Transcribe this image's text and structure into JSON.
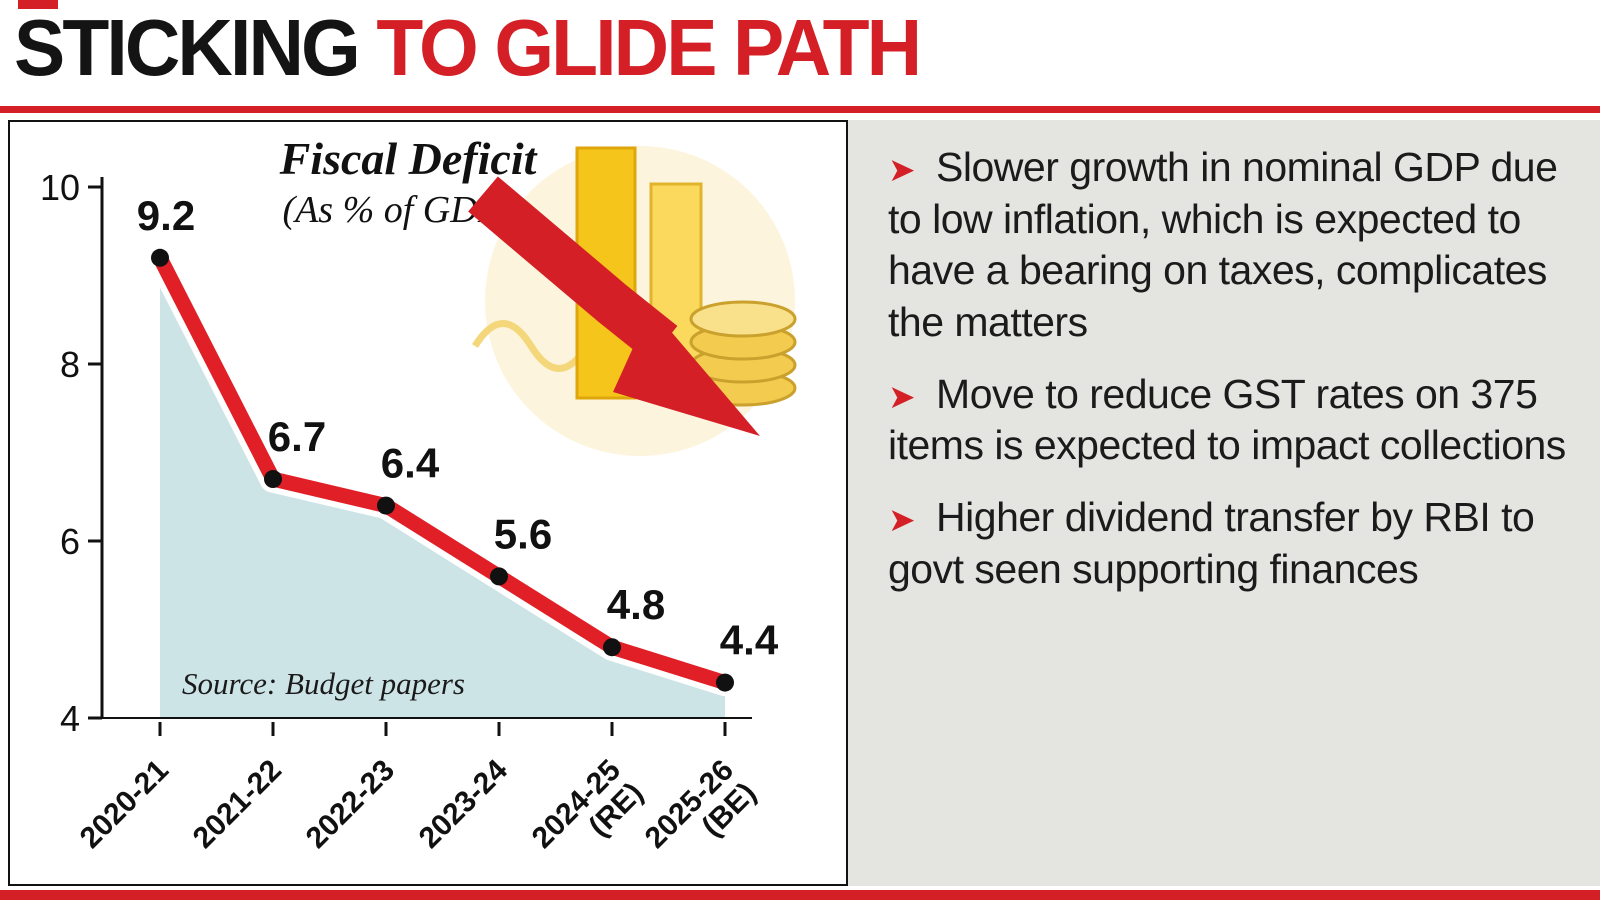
{
  "headline": {
    "black": "STICKING",
    "red": " TO GLIDE PATH"
  },
  "chart_data": {
    "type": "line",
    "title": "Fiscal Deficit",
    "subtitle": "(As % of GDP)",
    "categories": [
      "2020-21",
      "2021-22",
      "2022-23",
      "2023-24",
      "2024-25\n(RE)",
      "2025-26\n(BE)"
    ],
    "values": [
      9.2,
      6.7,
      6.4,
      5.6,
      4.8,
      4.4
    ],
    "ylim": [
      4,
      10
    ],
    "yticks": [
      4,
      6,
      8,
      10
    ],
    "source": "Source: Budget papers",
    "line_color": "#e01f26",
    "area_color": "#cde4e7",
    "point_color": "#111111"
  },
  "bullets": [
    {
      "text": "Slower growth in nominal GDP due to low inflation, which is expected to have a bearing on taxes, complicates the matters"
    },
    {
      "text": "Move to reduce GST rates on 375 items is expected to impact collections"
    },
    {
      "text": "Higher dividend transfer by RBI to govt seen supporting finances"
    }
  ],
  "colors": {
    "accent_red": "#d51f26",
    "panel_gray": "#e4e4e1"
  }
}
